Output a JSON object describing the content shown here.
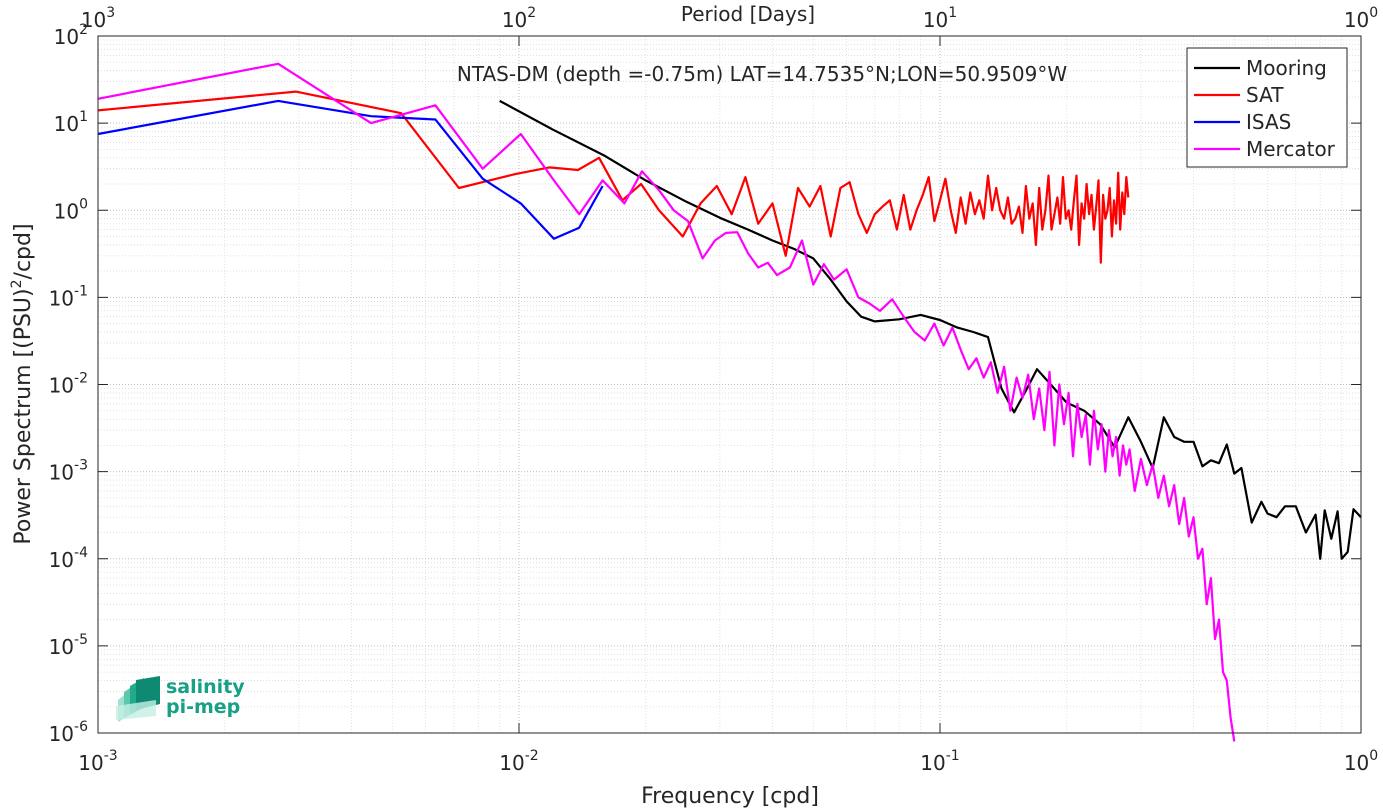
{
  "chart_data": {
    "type": "line",
    "title": "NTAS-DM (depth =-0.75m) LAT=14.7535°N;LON=50.9509°W",
    "xlabel": "Frequency [cpd]",
    "ylabel_main": "Power Spectrum [(PSU)",
    "ylabel_sup": "2",
    "ylabel_tail": "/cpd]",
    "top_axis_label": "Period [Days]",
    "x_scale": "log",
    "y_scale": "log",
    "xlim": [
      0.001,
      1
    ],
    "ylim": [
      1e-06,
      100
    ],
    "grid": true,
    "legend_position": "top-right",
    "x_ticks": [
      {
        "value": 0.001,
        "base": "10",
        "exp": "-3"
      },
      {
        "value": 0.01,
        "base": "10",
        "exp": "-2"
      },
      {
        "value": 0.1,
        "base": "10",
        "exp": "-1"
      },
      {
        "value": 1,
        "base": "10",
        "exp": "0"
      }
    ],
    "y_ticks": [
      {
        "value": 1e-06,
        "base": "10",
        "exp": "-6"
      },
      {
        "value": 1e-05,
        "base": "10",
        "exp": "-5"
      },
      {
        "value": 0.0001,
        "base": "10",
        "exp": "-4"
      },
      {
        "value": 0.001,
        "base": "10",
        "exp": "-3"
      },
      {
        "value": 0.01,
        "base": "10",
        "exp": "-2"
      },
      {
        "value": 0.1,
        "base": "10",
        "exp": "-1"
      },
      {
        "value": 1,
        "base": "10",
        "exp": "0"
      },
      {
        "value": 10,
        "base": "10",
        "exp": "1"
      },
      {
        "value": 100,
        "base": "10",
        "exp": "2"
      }
    ],
    "top_ticks": [
      {
        "freq": 0.001,
        "base": "10",
        "exp": "3"
      },
      {
        "freq": 0.01,
        "base": "10",
        "exp": "2"
      },
      {
        "freq": 0.1,
        "base": "10",
        "exp": "1"
      },
      {
        "freq": 1,
        "base": "10",
        "exp": "0"
      }
    ],
    "series": [
      {
        "name": "Mooring",
        "color": "#000000",
        "x": [
          0.009,
          0.012,
          0.016,
          0.02,
          0.025,
          0.03,
          0.035,
          0.04,
          0.045,
          0.05,
          0.055,
          0.06,
          0.065,
          0.07,
          0.08,
          0.09,
          0.1,
          0.11,
          0.12,
          0.13,
          0.14,
          0.15,
          0.16,
          0.17,
          0.18,
          0.2,
          0.22,
          0.24,
          0.26,
          0.28,
          0.3,
          0.32,
          0.34,
          0.36,
          0.38,
          0.4,
          0.42,
          0.44,
          0.46,
          0.48,
          0.5,
          0.52,
          0.55,
          0.58,
          0.6,
          0.63,
          0.66,
          0.7,
          0.74,
          0.78,
          0.8,
          0.82,
          0.85,
          0.88,
          0.9,
          0.93,
          0.96,
          1.0
        ],
        "values": [
          18,
          8.5,
          4.2,
          2.2,
          1.25,
          0.82,
          0.6,
          0.45,
          0.36,
          0.28,
          0.16,
          0.09,
          0.06,
          0.053,
          0.056,
          0.063,
          0.055,
          0.045,
          0.04,
          0.035,
          0.009,
          0.0048,
          0.0085,
          0.015,
          0.011,
          0.0062,
          0.005,
          0.0035,
          0.0019,
          0.0042,
          0.0022,
          0.0011,
          0.0042,
          0.0025,
          0.0022,
          0.0022,
          0.00115,
          0.00135,
          0.00125,
          0.00205,
          0.00095,
          0.0011,
          0.00026,
          0.00045,
          0.00033,
          0.0003,
          0.0004,
          0.0004,
          0.0002,
          0.00032,
          0.0001,
          0.00036,
          0.00017,
          0.00035,
          0.0001,
          0.00012,
          0.00037,
          0.0003
        ]
      },
      {
        "name": "SAT",
        "color": "#ff0000",
        "x": [
          0.001,
          0.00295,
          0.00525,
          0.0072,
          0.0098,
          0.0118,
          0.0138,
          0.0155,
          0.0176,
          0.0195,
          0.0215,
          0.0245,
          0.027,
          0.0295,
          0.032,
          0.0345,
          0.037,
          0.04,
          0.043,
          0.046,
          0.049,
          0.052,
          0.055,
          0.058,
          0.061,
          0.064,
          0.067,
          0.07,
          0.073,
          0.076,
          0.079,
          0.082,
          0.085,
          0.088,
          0.091,
          0.094,
          0.097,
          0.1,
          0.103,
          0.106,
          0.109,
          0.112,
          0.115,
          0.118,
          0.121,
          0.124,
          0.127,
          0.13,
          0.133,
          0.136,
          0.139,
          0.142,
          0.145,
          0.148,
          0.151,
          0.154,
          0.157,
          0.16,
          0.163,
          0.166,
          0.169,
          0.172,
          0.175,
          0.178,
          0.181,
          0.184,
          0.187,
          0.19,
          0.193,
          0.196,
          0.199,
          0.202,
          0.205,
          0.208,
          0.211,
          0.214,
          0.217,
          0.22,
          0.223,
          0.226,
          0.229,
          0.232,
          0.235,
          0.238,
          0.241,
          0.244,
          0.247,
          0.25,
          0.253,
          0.256,
          0.259,
          0.262,
          0.265,
          0.268,
          0.271,
          0.274,
          0.277,
          0.28
        ],
        "values": [
          14,
          23,
          13,
          1.8,
          2.6,
          3.1,
          2.9,
          4.0,
          1.3,
          2.0,
          1.0,
          0.5,
          1.2,
          1.9,
          0.9,
          2.4,
          0.7,
          1.2,
          0.3,
          1.8,
          1.1,
          1.9,
          0.5,
          1.8,
          2.1,
          0.9,
          0.55,
          0.9,
          1.1,
          1.3,
          0.6,
          1.5,
          0.6,
          1.0,
          1.5,
          2.4,
          0.75,
          1.3,
          2.3,
          1.0,
          0.55,
          1.4,
          0.7,
          1.6,
          0.9,
          1.3,
          0.8,
          2.5,
          1.0,
          1.8,
          1.0,
          0.8,
          1.4,
          0.7,
          0.8,
          1.1,
          0.55,
          1.9,
          0.8,
          1.2,
          0.4,
          1.8,
          0.6,
          1.0,
          2.5,
          0.6,
          0.9,
          1.4,
          0.7,
          2.4,
          0.8,
          1.0,
          0.6,
          1.3,
          2.5,
          0.4,
          1.2,
          0.8,
          2.0,
          0.9,
          1.5,
          0.6,
          1.1,
          2.2,
          0.25,
          1.5,
          0.8,
          1.0,
          1.8,
          0.5,
          1.3,
          0.7,
          2.7,
          0.6,
          1.6,
          0.9,
          2.4,
          1.4
        ]
      },
      {
        "name": "ISAS",
        "color": "#0000ff",
        "x": [
          0.001,
          0.00268,
          0.00445,
          0.00633,
          0.0082,
          0.0101,
          0.0121,
          0.0139,
          0.0158
        ],
        "values": [
          7.5,
          18,
          12,
          11,
          2.3,
          1.2,
          0.47,
          0.63,
          1.9
        ]
      },
      {
        "name": "Mercator",
        "color": "#ff00ff",
        "x": [
          0.001,
          0.00268,
          0.00445,
          0.00633,
          0.0082,
          0.0101,
          0.0121,
          0.0139,
          0.0158,
          0.0178,
          0.0196,
          0.0215,
          0.0233,
          0.0252,
          0.0273,
          0.0292,
          0.031,
          0.033,
          0.035,
          0.037,
          0.039,
          0.041,
          0.044,
          0.047,
          0.05,
          0.053,
          0.056,
          0.06,
          0.064,
          0.068,
          0.072,
          0.077,
          0.082,
          0.087,
          0.092,
          0.097,
          0.102,
          0.107,
          0.112,
          0.117,
          0.122,
          0.127,
          0.132,
          0.137,
          0.142,
          0.147,
          0.152,
          0.157,
          0.162,
          0.167,
          0.172,
          0.177,
          0.182,
          0.187,
          0.192,
          0.197,
          0.202,
          0.207,
          0.212,
          0.217,
          0.222,
          0.227,
          0.232,
          0.237,
          0.242,
          0.247,
          0.252,
          0.257,
          0.262,
          0.267,
          0.272,
          0.277,
          0.282,
          0.29,
          0.3,
          0.31,
          0.32,
          0.33,
          0.34,
          0.35,
          0.36,
          0.37,
          0.38,
          0.39,
          0.4,
          0.41,
          0.42,
          0.43,
          0.44,
          0.45,
          0.46,
          0.47,
          0.48,
          0.49,
          0.5
        ],
        "values": [
          19,
          48,
          10,
          16,
          3.0,
          7.5,
          2.2,
          0.9,
          2.2,
          1.2,
          2.8,
          1.7,
          1.0,
          0.75,
          0.28,
          0.45,
          0.55,
          0.56,
          0.32,
          0.22,
          0.25,
          0.18,
          0.22,
          0.45,
          0.14,
          0.24,
          0.16,
          0.21,
          0.1,
          0.085,
          0.07,
          0.095,
          0.06,
          0.04,
          0.032,
          0.05,
          0.028,
          0.045,
          0.025,
          0.015,
          0.02,
          0.012,
          0.018,
          0.008,
          0.016,
          0.005,
          0.012,
          0.007,
          0.013,
          0.004,
          0.009,
          0.003,
          0.014,
          0.002,
          0.01,
          0.0035,
          0.008,
          0.0015,
          0.006,
          0.0025,
          0.0045,
          0.0012,
          0.005,
          0.0018,
          0.0035,
          0.001,
          0.003,
          0.0015,
          0.0025,
          0.0009,
          0.002,
          0.0012,
          0.0018,
          0.0006,
          0.0014,
          0.0007,
          0.0012,
          0.0005,
          0.0009,
          0.0004,
          0.0007,
          0.00025,
          0.0005,
          0.00018,
          0.0003,
          0.0001,
          0.00013,
          3e-05,
          6e-05,
          1.2e-05,
          2e-05,
          5e-06,
          4e-06,
          1.5e-06,
          8e-07
        ]
      }
    ]
  },
  "logo": {
    "line1": "salinity",
    "line2": "pi-mep",
    "accent": "#16a085"
  }
}
